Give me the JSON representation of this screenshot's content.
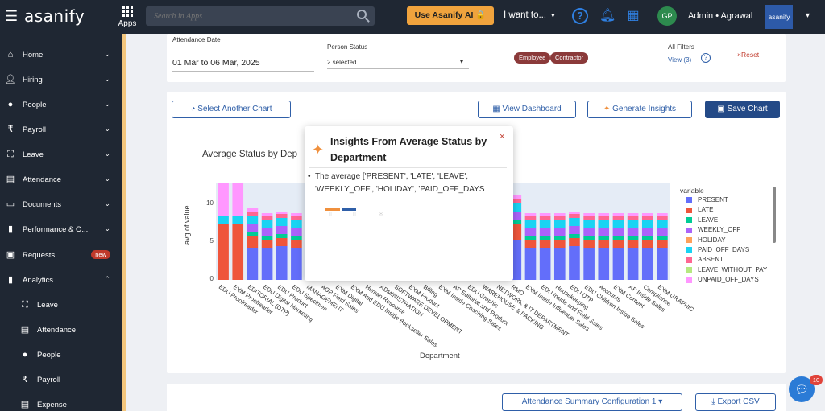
{
  "topbar": {
    "logo": "asanify",
    "apps_label": "Apps",
    "search_placeholder": "Search in Apps",
    "ai_button": "Use Asanify AI 🔒",
    "iwant": "I want to...",
    "avatar_initials": "GP",
    "user_name": "Admin • Agrawal",
    "brand_box": "asanify"
  },
  "sidebar": {
    "items": [
      {
        "label": "Home",
        "icon": "home-icon"
      },
      {
        "label": "Hiring",
        "icon": "hiring-icon"
      },
      {
        "label": "People",
        "icon": "people-icon"
      },
      {
        "label": "Payroll",
        "icon": "rupee-icon"
      },
      {
        "label": "Leave",
        "icon": "leave-icon"
      },
      {
        "label": "Attendance",
        "icon": "attendance-icon"
      },
      {
        "label": "Documents",
        "icon": "folder-icon"
      },
      {
        "label": "Performance & O...",
        "icon": "chart-icon"
      },
      {
        "label": "Requests",
        "icon": "requests-icon",
        "badge": "new"
      },
      {
        "label": "Analytics",
        "icon": "analytics-icon"
      }
    ],
    "sub_items": [
      {
        "label": "Leave",
        "icon": "leave-icon"
      },
      {
        "label": "Attendance",
        "icon": "attendance-icon"
      },
      {
        "label": "People",
        "icon": "people-icon"
      },
      {
        "label": "Payroll",
        "icon": "rupee-icon"
      },
      {
        "label": "Expense",
        "icon": "expense-icon"
      }
    ]
  },
  "filters": {
    "attendance_date_label": "Attendance Date",
    "attendance_date_value": "01 Mar to 06 Mar, 2025",
    "person_status_label": "Person Status",
    "person_status_value": "2 selected",
    "pills": [
      "Employee",
      "Contractor"
    ],
    "all_filters_label": "All Filters",
    "view_link": "View (3)",
    "reset": "×Reset"
  },
  "chart_toolbar": {
    "select_chart": "Select Another Chart",
    "view_dashboard": "View Dashboard",
    "generate_insights": "Generate Insights",
    "save_chart": "Save Chart"
  },
  "chart_data": {
    "type": "bar",
    "title": "Average Status by Dep",
    "xlabel": "Department",
    "ylabel": "avg of value",
    "ylim": [
      0,
      12
    ],
    "yticks": [
      "0",
      "5",
      "10"
    ],
    "legend_title": "variable",
    "legend_placement": "right",
    "categories": [
      "EDU Proofreader",
      "EXM Proofreader",
      "EDITORIAL (DTP)",
      "EDU Digital Marketing",
      "EDU Product",
      "EDU Specimen",
      "MANAGEMENT",
      "AGP Field Sales",
      "EXM Digital",
      "EXM And EDU Inside Bookseller Sales",
      "Human Resource",
      "ADMINISTRATION",
      "SOFTWARE DEVELOPMENT",
      "EXM Product",
      "Billing",
      "EXM Inside Coaching Sales",
      "AP Editorial and Product",
      "EDU Graphic",
      "WAREHOUSE & PACKING",
      "NETWORK & IT DEPARTMENT",
      "RMO",
      "EXM Inside Influencer Sales",
      "EDU Inside and Field Sales",
      "Housekeeping",
      "EDU DTP",
      "EDU Children Inside Sales",
      "Accounts",
      "EXM Content",
      "AP Inside Sales",
      "Compliance",
      "EXM GRAPHIC"
    ],
    "series": [
      {
        "name": "PRESENT",
        "color": "#636efa",
        "values": [
          0,
          0,
          4,
          4,
          4.2,
          4,
          4,
          4,
          4,
          4,
          4,
          4,
          4,
          4,
          4,
          4,
          4,
          4,
          4,
          4,
          5,
          4,
          4,
          4,
          4.2,
          4,
          4,
          4,
          4,
          4,
          4
        ]
      },
      {
        "name": "LATE",
        "color": "#ef553b",
        "values": [
          7,
          7,
          1.5,
          1,
          1,
          1,
          1,
          1,
          1,
          1,
          1,
          1,
          1,
          1,
          1,
          1,
          1,
          1,
          1,
          1,
          2,
          1,
          1,
          1,
          1,
          1,
          1,
          1,
          1,
          1,
          1
        ]
      },
      {
        "name": "LEAVE",
        "color": "#00cc96",
        "values": [
          0,
          0,
          0.5,
          0.5,
          0.5,
          0.5,
          0.5,
          0.5,
          0.5,
          0.5,
          0.5,
          0.5,
          0.5,
          0.5,
          0.5,
          0.5,
          0.5,
          0.5,
          0.5,
          0.5,
          0.5,
          0.5,
          0.5,
          0.5,
          0.5,
          0.5,
          0.5,
          0.5,
          0.5,
          0.5,
          0.5
        ]
      },
      {
        "name": "WEEKLY_OFF",
        "color": "#ab63fa",
        "values": [
          0,
          0,
          1,
          1,
          1,
          1,
          1,
          1,
          1,
          1,
          1,
          1,
          1,
          1,
          1,
          1,
          1,
          1,
          1,
          1,
          1,
          1,
          1,
          1,
          1,
          1,
          1,
          1,
          1,
          1,
          1
        ]
      },
      {
        "name": "HOLIDAY",
        "color": "#ffa15a",
        "values": [
          0,
          0,
          0,
          0,
          0,
          0,
          0,
          0,
          0,
          0,
          0,
          0,
          0,
          0,
          0,
          0,
          0,
          0,
          0,
          0,
          0,
          0,
          0,
          0,
          0,
          0,
          0,
          0,
          0,
          0,
          0
        ]
      },
      {
        "name": "PAID_OFF_DAYS",
        "color": "#19d3f3",
        "values": [
          1,
          1,
          1,
          1,
          1,
          1,
          1,
          1,
          1,
          1,
          1,
          1,
          1,
          1,
          1,
          1,
          1,
          1,
          1,
          1,
          1,
          1,
          1,
          1,
          1,
          1,
          1,
          1,
          1,
          1,
          1
        ]
      },
      {
        "name": "ABSENT",
        "color": "#ff6692",
        "values": [
          0,
          0,
          0.5,
          0.5,
          0.5,
          0.5,
          0.5,
          0.5,
          0.5,
          0.5,
          0.5,
          0.5,
          0.5,
          0.5,
          0.5,
          0.5,
          0.5,
          0.5,
          0.5,
          0.5,
          0.5,
          0.5,
          0.5,
          0.5,
          0.5,
          0.5,
          0.5,
          0.5,
          0.5,
          0.5,
          0.5
        ]
      },
      {
        "name": "LEAVE_WITHOUT_PAY",
        "color": "#b6e880",
        "values": [
          0,
          0,
          0,
          0,
          0,
          0,
          0,
          0,
          0,
          0,
          0,
          0,
          0,
          0,
          0,
          0,
          0,
          0,
          0,
          0,
          0,
          0,
          0,
          0,
          0,
          0,
          0,
          0,
          0,
          0,
          0
        ]
      },
      {
        "name": "UNPAID_OFF_DAYS",
        "color": "#ff97ff",
        "values": [
          4,
          4,
          0.5,
          0.3,
          0.3,
          0.3,
          0.3,
          0.3,
          0.3,
          0.3,
          0.3,
          0.3,
          0.3,
          0.3,
          0.3,
          0.3,
          0.3,
          0.3,
          0.3,
          0.3,
          0.5,
          0.3,
          0.3,
          0.3,
          0.3,
          0.3,
          0.3,
          0.3,
          0.3,
          0.3,
          0.3
        ]
      }
    ]
  },
  "modal": {
    "title": "Insights From Average Status by Department",
    "close": "×",
    "text": "The average ['PRESENT', 'LATE', 'LEAVE', 'WEEKLY_OFF', 'HOLIDAY', 'PAID_OFF_DAYS"
  },
  "bottom": {
    "config_button": "Attendance Summary Configuration 1 ▾",
    "export_button": "Export CSV"
  },
  "chat_badge": "10"
}
